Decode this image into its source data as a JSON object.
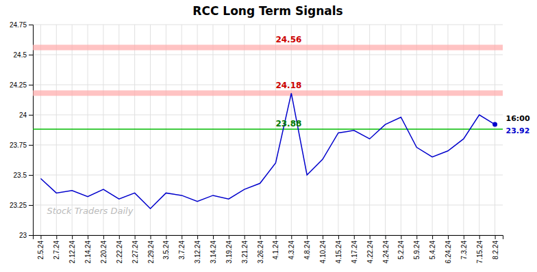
{
  "chart_data": {
    "type": "line",
    "title": "RCC Long Term Signals",
    "categories": [
      "2.5.24",
      "2.7.24",
      "2.12.24",
      "2.14.24",
      "2.20.24",
      "2.22.24",
      "2.27.24",
      "2.29.24",
      "3.5.24",
      "3.7.24",
      "3.12.24",
      "3.14.24",
      "3.19.24",
      "3.21.24",
      "3.26.24",
      "4.1.24",
      "4.3.24",
      "4.8.24",
      "4.10.24",
      "4.15.24",
      "4.17.24",
      "4.22.24",
      "4.24.24",
      "5.2.24",
      "5.9.24",
      "5.4.24",
      "6.24.24",
      "7.3.24",
      "7.15.24",
      "8.2.24"
    ],
    "values": [
      23.47,
      23.35,
      23.37,
      23.32,
      23.38,
      23.3,
      23.35,
      23.22,
      23.35,
      23.33,
      23.28,
      23.33,
      23.3,
      23.38,
      23.43,
      23.6,
      24.18,
      23.5,
      23.63,
      23.85,
      23.87,
      23.8,
      23.92,
      23.98,
      23.73,
      23.65,
      23.7,
      23.8,
      24.0,
      23.92
    ],
    "color": "#0000cc",
    "ylim": [
      23.0,
      24.75
    ],
    "yticks": [
      23,
      23.25,
      23.5,
      23.75,
      24,
      24.25,
      24.5,
      24.75
    ],
    "grid": true,
    "hlines": [
      {
        "value": 24.56,
        "color": "#ffaaaa",
        "label": "24.56",
        "label_color": "#cc0000"
      },
      {
        "value": 24.18,
        "color": "#ffaaaa",
        "label": "24.18",
        "label_color": "#cc0000"
      },
      {
        "value": 23.88,
        "color": "#00bb00",
        "label": "23.88",
        "label_color": "#007700"
      }
    ],
    "last_point": {
      "marker": "circle",
      "time_label": "16:00",
      "time_color": "#000000",
      "value_label": "23.92",
      "value_color": "#0000cc"
    },
    "watermark": {
      "text": "Stock Traders Daily",
      "color": "#bbbbbb"
    }
  }
}
